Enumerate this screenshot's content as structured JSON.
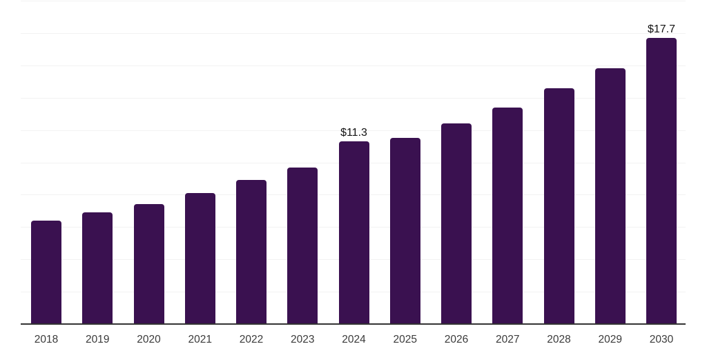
{
  "colors": {
    "background": "#ffffff",
    "bar": "#3a1150",
    "grid": "#f2f2f2",
    "axis": "#333333",
    "tick_label": "#3a3a3a",
    "value_label": "#111111"
  },
  "chart_data": {
    "type": "bar",
    "title": "",
    "xlabel": "",
    "ylabel": "",
    "categories": [
      "2018",
      "2019",
      "2020",
      "2021",
      "2022",
      "2023",
      "2024",
      "2025",
      "2026",
      "2027",
      "2028",
      "2029",
      "2030"
    ],
    "values": [
      6.4,
      6.9,
      7.4,
      8.1,
      8.9,
      9.7,
      11.3,
      11.5,
      12.4,
      13.4,
      14.6,
      15.8,
      17.7
    ],
    "annotations": [
      {
        "category": "2024",
        "text": "$11.3"
      },
      {
        "category": "2030",
        "text": "$17.7"
      }
    ],
    "ylim": [
      0,
      20
    ],
    "grid_step": 2,
    "grid": true,
    "legend": "none",
    "y_axis_labels_shown": false
  }
}
